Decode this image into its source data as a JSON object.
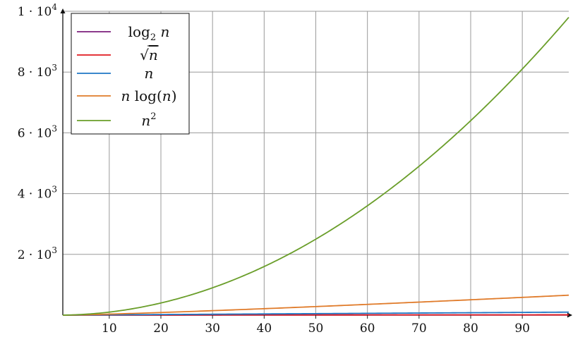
{
  "chart_data": {
    "type": "line",
    "title": "",
    "xlabel": "",
    "ylabel": "",
    "xlim": [
      1,
      99
    ],
    "ylim": [
      0,
      10000
    ],
    "grid": true,
    "legend_position": "top-left",
    "x_ticks": [
      10,
      20,
      30,
      40,
      50,
      60,
      70,
      80,
      90
    ],
    "x_tick_labels": [
      "10",
      "20",
      "30",
      "40",
      "50",
      "60",
      "70",
      "80",
      "90"
    ],
    "y_ticks": [
      {
        "value": 2000,
        "mantissa": "2",
        "exponent": "3"
      },
      {
        "value": 4000,
        "mantissa": "4",
        "exponent": "3"
      },
      {
        "value": 6000,
        "mantissa": "6",
        "exponent": "3"
      },
      {
        "value": 8000,
        "mantissa": "8",
        "exponent": "3"
      },
      {
        "value": 10000,
        "mantissa": "1",
        "exponent": "4"
      }
    ],
    "y_tick_base": "10",
    "y_tick_dot": "·",
    "series": [
      {
        "name": "log₂ n",
        "color": "#7b1f7b",
        "x": [
          1,
          10,
          20,
          30,
          40,
          50,
          60,
          70,
          80,
          90,
          99
        ],
        "values": [
          0,
          3.32,
          4.32,
          4.91,
          5.32,
          5.64,
          5.91,
          6.13,
          6.32,
          6.49,
          6.63
        ]
      },
      {
        "name": "√n",
        "color": "#e0191f",
        "x": [
          1,
          10,
          20,
          30,
          40,
          50,
          60,
          70,
          80,
          90,
          99
        ],
        "values": [
          1,
          3.16,
          4.47,
          5.48,
          6.32,
          7.07,
          7.75,
          8.37,
          8.94,
          9.49,
          9.95
        ]
      },
      {
        "name": "n",
        "color": "#1f77c4",
        "x": [
          1,
          10,
          20,
          30,
          40,
          50,
          60,
          70,
          80,
          90,
          99
        ],
        "values": [
          1,
          10,
          20,
          30,
          40,
          50,
          60,
          70,
          80,
          90,
          99
        ]
      },
      {
        "name": "n log(n)",
        "color": "#e07b2a",
        "x": [
          1,
          10,
          20,
          30,
          40,
          50,
          60,
          70,
          80,
          90,
          99
        ],
        "values": [
          0,
          33.2,
          86.4,
          147.2,
          212.9,
          282.2,
          354.4,
          429.1,
          505.8,
          584.3,
          656.4
        ]
      },
      {
        "name": "n²",
        "color": "#6a9e2a",
        "x": [
          1,
          10,
          20,
          30,
          40,
          50,
          60,
          70,
          80,
          90,
          99
        ],
        "values": [
          1,
          100,
          400,
          900,
          1600,
          2500,
          3600,
          4900,
          6400,
          8100,
          9801
        ]
      }
    ]
  },
  "legend": {
    "items": [
      {
        "color": "#7b1f7b",
        "base": "log",
        "sub": "2",
        "var": "n"
      },
      {
        "color": "#e0191f",
        "sqrt": "√",
        "var": "n"
      },
      {
        "color": "#1f77c4",
        "var": "n"
      },
      {
        "color": "#e07b2a",
        "var": "n",
        "fn": "log(",
        "var2": "n",
        "close": ")"
      },
      {
        "color": "#6a9e2a",
        "var": "n",
        "sup": "2"
      }
    ]
  }
}
